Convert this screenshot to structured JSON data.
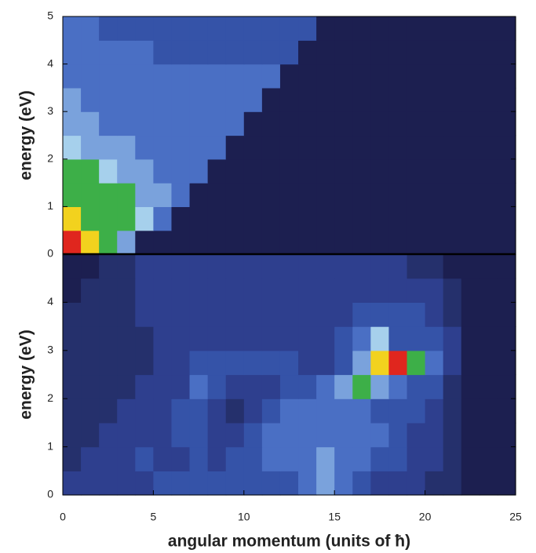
{
  "chart_data": [
    {
      "type": "heatmap",
      "ylabel": "energy (eV)",
      "x": [
        0,
        1,
        2,
        3,
        4,
        5,
        6,
        7,
        8,
        9,
        10,
        11,
        12,
        13,
        14,
        15,
        16,
        17,
        18,
        19,
        20,
        21,
        22,
        23,
        24,
        25
      ],
      "y": [
        0,
        0.5,
        1,
        1.5,
        2,
        2.5,
        3,
        3.5,
        4,
        4.5,
        5
      ],
      "xlim": [
        0,
        25
      ],
      "ylim": [
        0,
        5
      ],
      "yticks": [
        0,
        1,
        2,
        3,
        4,
        5
      ],
      "colors": [
        "#1c1f50",
        "#25306c",
        "#2e3f8e",
        "#3553a8",
        "#4a6fc4",
        "#7aa2dc",
        "#a6d0ec",
        "#3daf48",
        "#f2d21e",
        "#e0261e"
      ],
      "z": [
        [
          9,
          8,
          7,
          5,
          0,
          0,
          0,
          0,
          0,
          0,
          0,
          0,
          0,
          0,
          0,
          0,
          0,
          0,
          0,
          0,
          0,
          0,
          0,
          0,
          0
        ],
        [
          8,
          7,
          7,
          7,
          6,
          4,
          0,
          0,
          0,
          0,
          0,
          0,
          0,
          0,
          0,
          0,
          0,
          0,
          0,
          0,
          0,
          0,
          0,
          0,
          0
        ],
        [
          7,
          7,
          7,
          7,
          5,
          5,
          4,
          0,
          0,
          0,
          0,
          0,
          0,
          0,
          0,
          0,
          0,
          0,
          0,
          0,
          0,
          0,
          0,
          0,
          0
        ],
        [
          7,
          7,
          6,
          5,
          5,
          4,
          4,
          4,
          0,
          0,
          0,
          0,
          0,
          0,
          0,
          0,
          0,
          0,
          0,
          0,
          0,
          0,
          0,
          0,
          0
        ],
        [
          6,
          5,
          5,
          5,
          4,
          4,
          4,
          4,
          4,
          0,
          0,
          0,
          0,
          0,
          0,
          0,
          0,
          0,
          0,
          0,
          0,
          0,
          0,
          0,
          0
        ],
        [
          5,
          5,
          4,
          4,
          4,
          4,
          4,
          4,
          4,
          4,
          0,
          0,
          0,
          0,
          0,
          0,
          0,
          0,
          0,
          0,
          0,
          0,
          0,
          0,
          0
        ],
        [
          5,
          4,
          4,
          4,
          4,
          4,
          4,
          4,
          4,
          4,
          4,
          0,
          0,
          0,
          0,
          0,
          0,
          0,
          0,
          0,
          0,
          0,
          0,
          0,
          0
        ],
        [
          4,
          4,
          4,
          4,
          4,
          4,
          4,
          4,
          4,
          4,
          4,
          4,
          0,
          0,
          0,
          0,
          0,
          0,
          0,
          0,
          0,
          0,
          0,
          0,
          0
        ],
        [
          4,
          4,
          4,
          4,
          4,
          3,
          3,
          3,
          3,
          3,
          3,
          3,
          3,
          0,
          0,
          0,
          0,
          0,
          0,
          0,
          0,
          0,
          0,
          0,
          0
        ],
        [
          4,
          4,
          3,
          3,
          3,
          3,
          3,
          3,
          3,
          3,
          3,
          3,
          3,
          3,
          0,
          0,
          0,
          0,
          0,
          0,
          0,
          0,
          0,
          0,
          0
        ]
      ]
    },
    {
      "type": "heatmap",
      "ylabel": "energy (eV)",
      "xlabel": "angular momentum (units of ħ)",
      "x": [
        0,
        1,
        2,
        3,
        4,
        5,
        6,
        7,
        8,
        9,
        10,
        11,
        12,
        13,
        14,
        15,
        16,
        17,
        18,
        19,
        20,
        21,
        22,
        23,
        24,
        25
      ],
      "y": [
        0,
        0.5,
        1,
        1.5,
        2,
        2.5,
        3,
        3.5,
        4,
        4.5,
        5
      ],
      "xlim": [
        0,
        25
      ],
      "ylim": [
        0,
        5
      ],
      "xticks": [
        0,
        5,
        10,
        15,
        20,
        25
      ],
      "yticks": [
        0,
        1,
        2,
        3,
        4
      ],
      "colors": [
        "#1c1f50",
        "#25306c",
        "#2e3f8e",
        "#3553a8",
        "#4a6fc4",
        "#7aa2dc",
        "#a6d0ec",
        "#3daf48",
        "#f2d21e",
        "#e0261e"
      ],
      "z": [
        [
          2,
          2,
          2,
          2,
          2,
          3,
          3,
          3,
          3,
          3,
          3,
          3,
          3,
          4,
          5,
          4,
          3,
          2,
          2,
          2,
          1,
          1,
          0,
          0,
          0
        ],
        [
          1,
          2,
          2,
          2,
          3,
          2,
          2,
          3,
          2,
          3,
          3,
          4,
          4,
          4,
          5,
          4,
          4,
          3,
          3,
          2,
          2,
          1,
          0,
          0,
          0
        ],
        [
          1,
          1,
          2,
          2,
          2,
          2,
          3,
          3,
          2,
          2,
          3,
          4,
          4,
          4,
          4,
          4,
          4,
          4,
          3,
          2,
          2,
          1,
          0,
          0,
          0
        ],
        [
          1,
          1,
          1,
          2,
          2,
          2,
          3,
          3,
          2,
          1,
          2,
          3,
          4,
          4,
          4,
          4,
          4,
          3,
          3,
          3,
          2,
          1,
          0,
          0,
          0
        ],
        [
          1,
          1,
          1,
          1,
          2,
          2,
          2,
          4,
          3,
          2,
          2,
          2,
          3,
          3,
          4,
          5,
          7,
          5,
          4,
          3,
          3,
          1,
          0,
          0,
          0
        ],
        [
          1,
          1,
          1,
          1,
          1,
          2,
          2,
          3,
          3,
          3,
          3,
          3,
          3,
          2,
          2,
          3,
          5,
          8,
          9,
          7,
          4,
          2,
          0,
          0,
          0
        ],
        [
          1,
          1,
          1,
          1,
          1,
          2,
          2,
          2,
          2,
          2,
          2,
          2,
          2,
          2,
          2,
          3,
          4,
          6,
          3,
          3,
          3,
          2,
          0,
          0,
          0
        ],
        [
          1,
          1,
          1,
          1,
          2,
          2,
          2,
          2,
          2,
          2,
          2,
          2,
          2,
          2,
          2,
          2,
          3,
          3,
          3,
          3,
          2,
          1,
          0,
          0,
          0
        ],
        [
          0,
          1,
          1,
          1,
          2,
          2,
          2,
          2,
          2,
          2,
          2,
          2,
          2,
          2,
          2,
          2,
          2,
          2,
          2,
          2,
          2,
          1,
          0,
          0,
          0
        ],
        [
          0,
          0,
          1,
          1,
          2,
          2,
          2,
          2,
          2,
          2,
          2,
          2,
          2,
          2,
          2,
          2,
          2,
          2,
          2,
          1,
          1,
          0,
          0,
          0,
          0
        ]
      ]
    }
  ]
}
